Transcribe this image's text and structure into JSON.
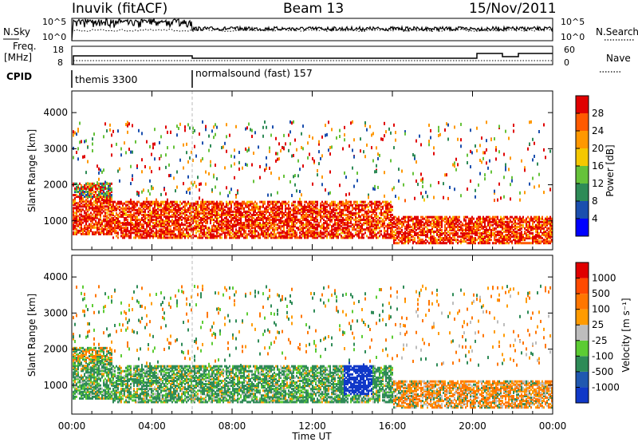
{
  "header": {
    "station": "Inuvik (fitACF)",
    "beam": "Beam 13",
    "date": "15/Nov/2011"
  },
  "left_labels": {
    "nsky": "N.Sky",
    "freq": "Freq.",
    "mhz": "[MHz]",
    "cpid": "CPID"
  },
  "right_labels": {
    "nsearch": "N.Search",
    "nave": "Nave"
  },
  "colors": {
    "power_scale": [
      "#0000ff",
      "#1b4fae",
      "#2e8b57",
      "#66c23a",
      "#f5c800",
      "#ff9800",
      "#ff5a00",
      "#e00000"
    ],
    "velocity_scale": [
      "#1038c8",
      "#2058b0",
      "#2e8b57",
      "#5ccc33",
      "#bdbdbd",
      "#ff9b00",
      "#ff7600",
      "#ff4a00",
      "#e00000"
    ]
  },
  "chart_data": [
    {
      "type": "line",
      "name": "noise",
      "left_axis_ticks": [
        "10^5",
        "10^0"
      ],
      "right_axis_ticks": [
        "10^5",
        "10^0"
      ]
    },
    {
      "type": "line",
      "name": "frequency",
      "left_axis_ticks": [
        "18",
        "8"
      ],
      "right_axis_ticks": [
        "60",
        "0"
      ]
    },
    {
      "type": "table",
      "name": "cpid",
      "entries": [
        {
          "label": "themis 3300",
          "start_hour": 0
        },
        {
          "label": "normalsound (fast) 157",
          "start_hour": 6
        }
      ]
    },
    {
      "type": "heatmap",
      "name": "power",
      "ylabel": "Slant Range [km]",
      "yticks": [
        "1000",
        "2000",
        "3000",
        "4000"
      ],
      "ylim": [
        200,
        4600
      ],
      "colorbar_label": "Power [dB]",
      "colorbar_ticks": [
        "4",
        "8",
        "12",
        "16",
        "20",
        "24",
        "28"
      ]
    },
    {
      "type": "heatmap",
      "name": "velocity",
      "ylabel": "Slant Range [km]",
      "yticks": [
        "1000",
        "2000",
        "3000",
        "4000"
      ],
      "ylim": [
        200,
        4600
      ],
      "colorbar_label": "Velocity [m s⁻¹]",
      "colorbar_ticks": [
        "1000",
        "500",
        "100",
        "25",
        "-25",
        "-100",
        "-500",
        "-1000"
      ]
    }
  ],
  "time_axis": {
    "label": "Time UT",
    "ticks": [
      "00:00",
      "04:00",
      "08:00",
      "12:00",
      "16:00",
      "20:00",
      "00:00"
    ]
  }
}
